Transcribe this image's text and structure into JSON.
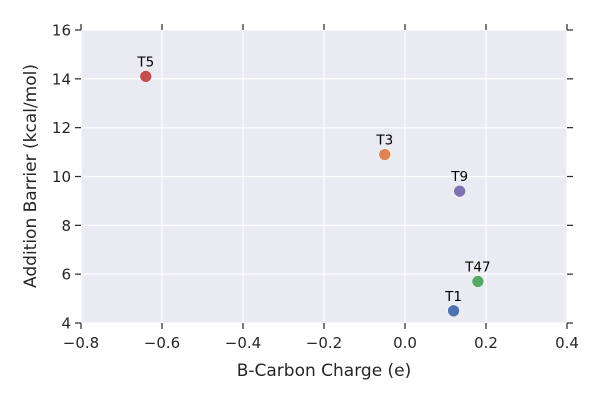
{
  "chart_data": {
    "type": "scatter",
    "title": "",
    "xlabel": "B-Carbon Charge (e)",
    "ylabel": "Addition Barrier (kcal/mol)",
    "xlim": [
      -0.8,
      0.4
    ],
    "ylim": [
      4,
      16
    ],
    "xticks": [
      -0.8,
      -0.6,
      -0.4,
      -0.2,
      0.0,
      0.2,
      0.4
    ],
    "xtick_labels": [
      "−0.8",
      "−0.6",
      "−0.4",
      "−0.2",
      "0.0",
      "0.2",
      "0.4"
    ],
    "yticks": [
      4,
      6,
      8,
      10,
      12,
      14,
      16
    ],
    "ytick_labels": [
      "4",
      "6",
      "8",
      "10",
      "12",
      "14",
      "16"
    ],
    "grid": true,
    "background_color": "#eaeaf2",
    "points": [
      {
        "label": "T1",
        "x": 0.12,
        "y": 4.5,
        "color": "#4c72b0"
      },
      {
        "label": "T47",
        "x": 0.18,
        "y": 5.7,
        "color": "#55a868"
      },
      {
        "label": "T9",
        "x": 0.135,
        "y": 9.4,
        "color": "#8172b2"
      },
      {
        "label": "T3",
        "x": -0.05,
        "y": 10.9,
        "color": "#dd8452"
      },
      {
        "label": "T5",
        "x": -0.64,
        "y": 14.1,
        "color": "#c44e52"
      }
    ]
  }
}
